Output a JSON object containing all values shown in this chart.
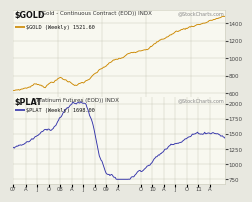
{
  "title_gold": "$GOLD",
  "subtitle_gold": " (Gold - Continuous Contract (EOD)) INDX",
  "legend_gold": "$GOLD (Weekly) 1521.60",
  "title_plat": "$PLAT",
  "subtitle_plat": " (Platinum Futures (EOD)) INDX",
  "legend_plat": "$PLAT (Weekly) 1698.00",
  "watermark": "@StockCharts.com",
  "gold_color": "#CC8800",
  "plat_color": "#3333AA",
  "bg_color": "#E8E8E0",
  "panel_bg": "#F8F8F0",
  "grid_color": "#CCCCBB",
  "text_color": "#111111",
  "axis_label_color": "#444444",
  "yticks_gold": [
    600,
    800,
    1000,
    1200,
    1400
  ],
  "yticks_plat": [
    750,
    1000,
    1250,
    1500,
    1750,
    2000
  ],
  "gold_ylim": [
    560,
    1560
  ],
  "plat_ylim": [
    680,
    2120
  ],
  "xlabels": [
    "07",
    "A",
    "J",
    "O",
    "08",
    "A",
    "J",
    "O",
    "09",
    "A",
    "O",
    "10",
    "A",
    "J",
    "O",
    "11",
    "A"
  ],
  "tick_positions": [
    0,
    14,
    27,
    40,
    53,
    66,
    79,
    92,
    105,
    118,
    144,
    157,
    170,
    183,
    196,
    209,
    222
  ]
}
